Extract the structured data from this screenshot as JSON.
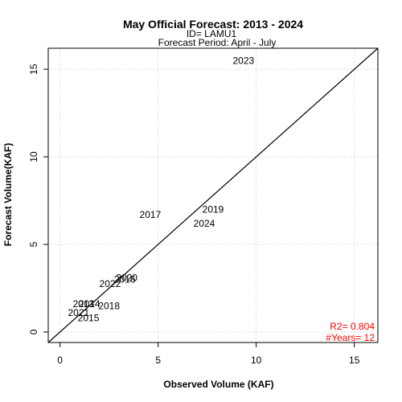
{
  "chart_data": {
    "type": "scatter",
    "title": "May Official Forecast: 2013 - 2024",
    "subtitle_id": "ID= LAMU1",
    "subtitle_period": "Forecast Period:  April - July",
    "xlabel": "Observed Volume (KAF)",
    "ylabel": "Forecast Volume(KAF)",
    "xlim": [
      -0.6,
      16.2
    ],
    "ylim": [
      -0.6,
      16.2
    ],
    "xticks": [
      0,
      5,
      10,
      15
    ],
    "yticks": [
      0,
      5,
      10,
      15
    ],
    "grid": true,
    "reference_line": "1:1",
    "points": [
      {
        "label": "2013",
        "x": 1.2,
        "y": 1.6
      },
      {
        "label": "2014",
        "x": 1.5,
        "y": 1.6
      },
      {
        "label": "2015",
        "x": 1.45,
        "y": 0.8
      },
      {
        "label": "2016",
        "x": 3.3,
        "y": 3.0
      },
      {
        "label": "2017",
        "x": 4.6,
        "y": 6.7
      },
      {
        "label": "2018",
        "x": 2.5,
        "y": 1.5
      },
      {
        "label": "2019",
        "x": 7.8,
        "y": 7.0
      },
      {
        "label": "2020",
        "x": 3.4,
        "y": 3.1
      },
      {
        "label": "2021",
        "x": 0.95,
        "y": 1.1
      },
      {
        "label": "2022",
        "x": 2.55,
        "y": 2.75
      },
      {
        "label": "2023",
        "x": 9.35,
        "y": 15.5
      },
      {
        "label": "2024",
        "x": 7.35,
        "y": 6.2
      }
    ],
    "stats": {
      "r2": "R2=  0.804",
      "years": "#Years=  12",
      "color": "#ff0000"
    }
  }
}
